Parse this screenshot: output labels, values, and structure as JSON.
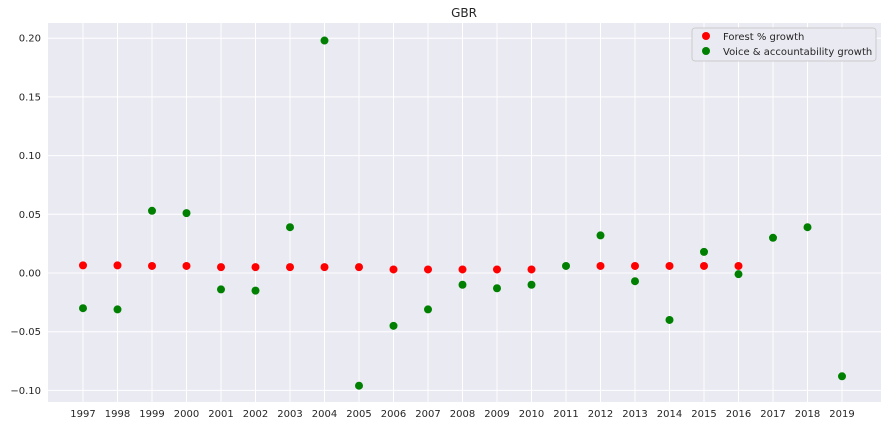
{
  "chart_data": {
    "type": "scatter",
    "title": "GBR",
    "xlabel": "",
    "ylabel": "",
    "categories": [
      "1997",
      "1998",
      "1999",
      "2000",
      "2001",
      "2002",
      "2003",
      "2004",
      "2005",
      "2006",
      "2007",
      "2008",
      "2009",
      "2010",
      "2011",
      "2012",
      "2013",
      "2014",
      "2015",
      "2016",
      "2017",
      "2018",
      "2019"
    ],
    "yticks": [
      "0.20",
      "0.15",
      "0.10",
      "0.05",
      "0.00",
      "−0.05",
      "−0.10"
    ],
    "ytick_values": [
      0.2,
      0.15,
      0.1,
      0.05,
      0.0,
      -0.05,
      -0.1
    ],
    "ylim": [
      -0.11,
      0.215
    ],
    "grid": true,
    "background": "#eaeaf2",
    "legend_position": "top-right",
    "series": [
      {
        "name": "Forest % growth",
        "color": "#ff0000",
        "x": [
          "1997",
          "1998",
          "1999",
          "2000",
          "2001",
          "2002",
          "2003",
          "2004",
          "2005",
          "2006",
          "2007",
          "2008",
          "2009",
          "2010",
          "2012",
          "2013",
          "2014",
          "2015",
          "2016"
        ],
        "values": [
          0.0065,
          0.0065,
          0.006,
          0.006,
          0.005,
          0.005,
          0.005,
          0.005,
          0.005,
          0.003,
          0.003,
          0.003,
          0.003,
          0.003,
          0.006,
          0.006,
          0.006,
          0.006,
          0.006
        ]
      },
      {
        "name": "Voice & accountability growth",
        "color": "#008000",
        "x": [
          "1997",
          "1998",
          "1999",
          "2000",
          "2001",
          "2002",
          "2003",
          "2004",
          "2005",
          "2006",
          "2007",
          "2008",
          "2009",
          "2010",
          "2011",
          "2012",
          "2013",
          "2014",
          "2015",
          "2016",
          "2017",
          "2018",
          "2019"
        ],
        "values": [
          -0.03,
          -0.031,
          0.053,
          0.051,
          -0.014,
          -0.015,
          0.039,
          0.198,
          -0.096,
          -0.045,
          -0.031,
          -0.01,
          -0.013,
          -0.01,
          0.006,
          0.032,
          -0.007,
          -0.04,
          0.018,
          -0.001,
          0.03,
          0.039,
          -0.088
        ]
      }
    ]
  }
}
